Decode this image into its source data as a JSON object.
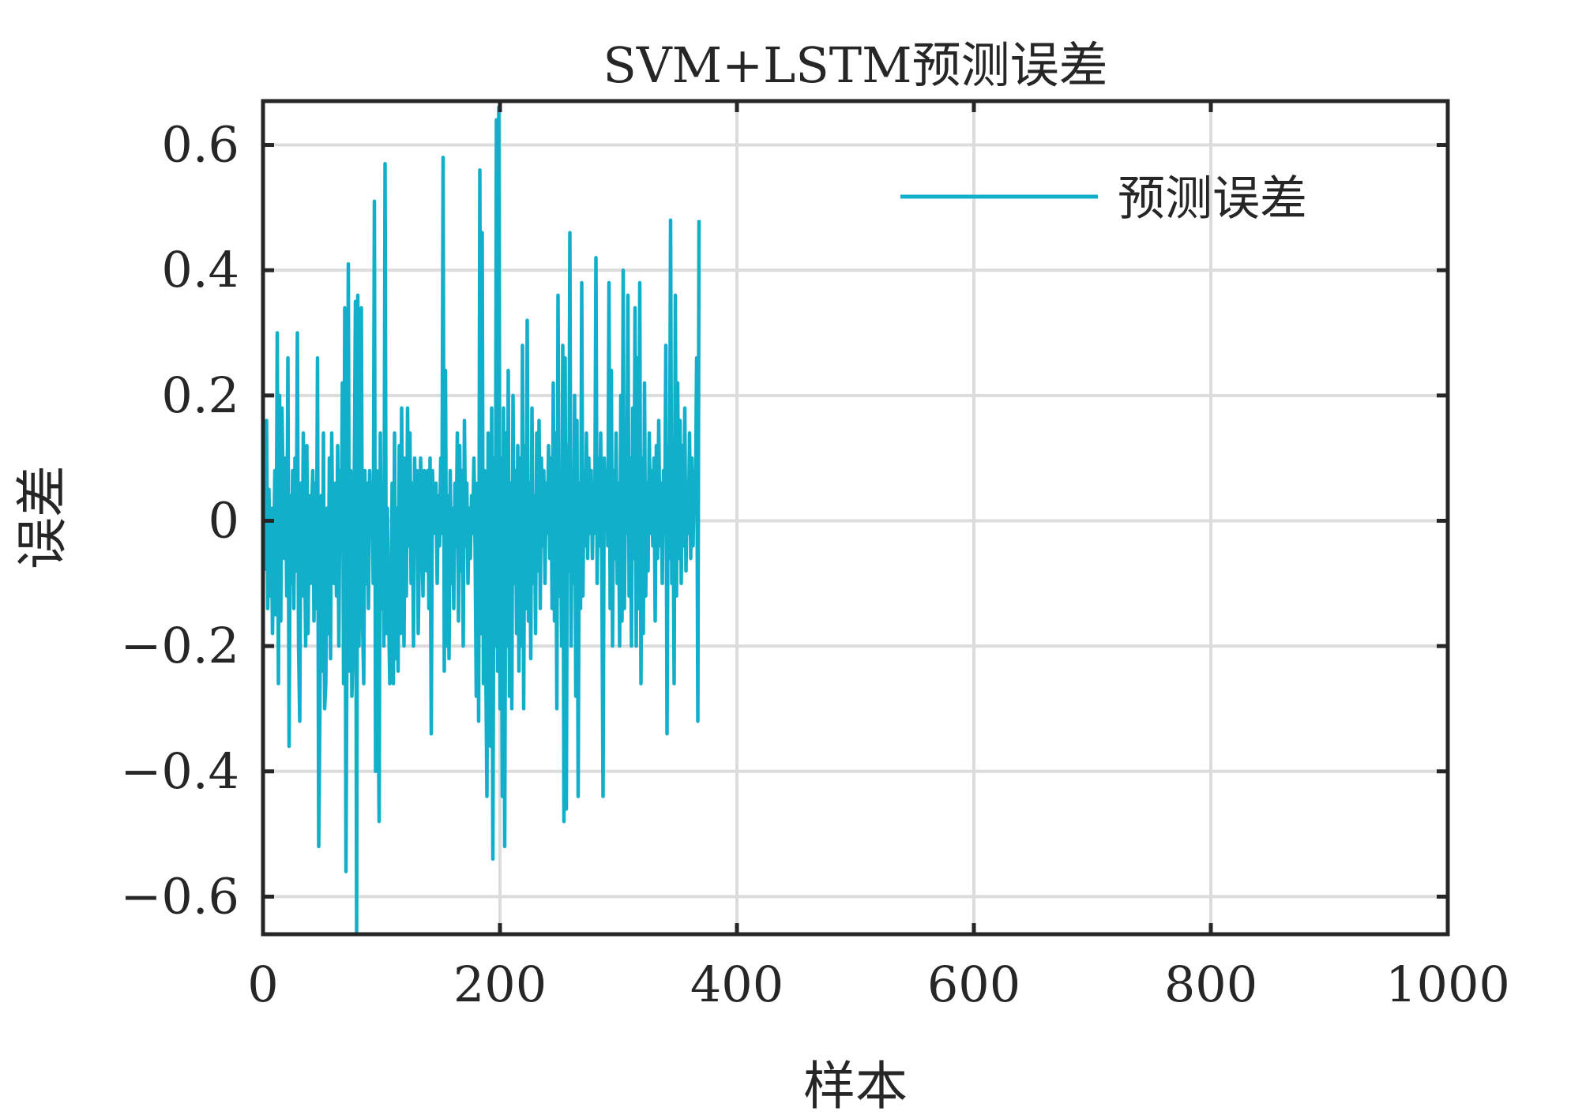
{
  "chart_data": {
    "type": "line",
    "title": "SVM+LSTM预测误差",
    "xlabel": "样本",
    "ylabel": "误差",
    "xlim": [
      0,
      1000
    ],
    "ylim": [
      -0.66,
      0.67
    ],
    "xticks": [
      0,
      200,
      400,
      600,
      800,
      1000
    ],
    "xtick_labels": [
      "0",
      "200",
      "400",
      "600",
      "800",
      "1000"
    ],
    "yticks": [
      -0.6,
      -0.4,
      -0.2,
      0,
      0.2,
      0.4,
      0.6
    ],
    "ytick_labels": [
      "−0.6",
      "−0.4",
      "−0.2",
      "0",
      "0.2",
      "0.4",
      "0.6"
    ],
    "grid": true,
    "legend_position": "top-right",
    "series": [
      {
        "name": "预测误差",
        "color": "#12AFCA",
        "x_start": 1,
        "x_step": 1,
        "values": [
          -0.08,
          -0.04,
          0.16,
          -0.14,
          0.05,
          -0.12,
          0.02,
          -0.18,
          -0.05,
          0.08,
          -0.15,
          0.3,
          -0.26,
          0.2,
          -0.16,
          0.18,
          0.05,
          -0.06,
          0.1,
          -0.12,
          0.26,
          -0.36,
          0.04,
          -0.1,
          0.08,
          -0.14,
          0.1,
          -0.08,
          0.3,
          -0.2,
          -0.32,
          0.06,
          -0.12,
          0.14,
          -0.02,
          -0.2,
          0.12,
          -0.18,
          0.04,
          -0.1,
          0.02,
          0.08,
          -0.16,
          0.06,
          -0.14,
          0.26,
          -0.52,
          -0.3,
          0.04,
          -0.24,
          0.14,
          -0.3,
          -0.26,
          0.02,
          -0.18,
          0.1,
          -0.22,
          0.14,
          -0.06,
          -0.1,
          0.06,
          -0.12,
          0.12,
          -0.2,
          0.08,
          -0.02,
          0.22,
          -0.26,
          0.34,
          -0.56,
          -0.12,
          0.41,
          -0.24,
          0.08,
          -0.28,
          -0.2,
          0.06,
          0.35,
          -0.66,
          0.36,
          -0.2,
          0.06,
          0.34,
          -0.16,
          -0.26,
          0.08,
          -0.1,
          0.06,
          -0.14,
          0.08,
          -0.02,
          0.06,
          -0.1,
          0.51,
          -0.4,
          0.08,
          -0.22,
          -0.48,
          0.14,
          -0.14,
          0.06,
          -0.2,
          0.57,
          -0.18,
          0.02,
          -0.14,
          -0.26,
          -0.18,
          0.06,
          -0.26,
          0.14,
          -0.22,
          0.02,
          -0.24,
          0.12,
          -0.18,
          0.18,
          -0.06,
          -0.2,
          0.1,
          -0.12,
          0.18,
          -0.04,
          0.14,
          -0.1,
          0.06,
          -0.2,
          0.1,
          -0.04,
          0.08,
          -0.18,
          -0.04,
          0.1,
          0.02,
          -0.12,
          0.08,
          0.04,
          -0.08,
          0.08,
          -0.14,
          0.1,
          -0.34,
          0.08,
          0.02,
          -0.02,
          0.06,
          -0.1,
          0.04,
          -0.04,
          0.1,
          -0.02,
          0.58,
          -0.24,
          0.24,
          -0.2,
          0.04,
          -0.22,
          0.08,
          -0.1,
          0.02,
          -0.14,
          0.06,
          -0.04,
          0.14,
          -0.16,
          0.12,
          -0.08,
          0.08,
          -0.2,
          0.16,
          -0.04,
          0.06,
          -0.1,
          0.02,
          -0.06,
          0.04,
          -0.02,
          0.1,
          -0.04,
          -0.28,
          0.06,
          -0.32,
          0.56,
          -0.18,
          0.46,
          -0.26,
          0.08,
          -0.22,
          -0.44,
          0.14,
          -0.12,
          -0.36,
          0.18,
          -0.54,
          0.1,
          -0.2,
          0.64,
          -0.24,
          0.66,
          -0.3,
          0.1,
          -0.44,
          0.18,
          -0.52,
          0.14,
          -0.2,
          0.24,
          -0.28,
          0.06,
          -0.3,
          0.2,
          -0.1,
          0.08,
          -0.18,
          0.12,
          -0.24,
          0.1,
          -0.2,
          0.28,
          -0.3,
          0.12,
          -0.14,
          0.32,
          -0.16,
          0.06,
          -0.22,
          0.18,
          -0.1,
          0.04,
          -0.18,
          0.14,
          -0.08,
          0.16,
          -0.14,
          0.1,
          -0.04,
          0.08,
          -0.1,
          0.06,
          -0.02,
          0.12,
          -0.06,
          0.1,
          -0.14,
          0.22,
          -0.16,
          0.14,
          -0.3,
          0.36,
          -0.12,
          0.06,
          -0.2,
          0.28,
          -0.48,
          0.26,
          -0.46,
          0.12,
          -0.08,
          0.46,
          -0.2,
          0.06,
          -0.1,
          0.2,
          -0.28,
          0.16,
          -0.44,
          0.06,
          -0.14,
          0.38,
          -0.12,
          0.08,
          -0.04,
          0.14,
          -0.06,
          0.1,
          -0.02,
          0.08,
          -0.06,
          0.06,
          -0.02,
          0.42,
          -0.1,
          0.1,
          -0.04,
          0.14,
          -0.08,
          -0.44,
          0.1,
          0.02,
          0.08,
          -0.04,
          0.38,
          -0.14,
          0.24,
          -0.2,
          0.08,
          -0.06,
          0.14,
          -0.1,
          0.06,
          -0.2,
          0.2,
          -0.16,
          0.4,
          -0.14,
          0.06,
          -0.02,
          0.36,
          -0.12,
          0.1,
          -0.2,
          0.18,
          -0.06,
          0.34,
          -0.2,
          0.26,
          -0.14,
          0.38,
          -0.26,
          0.1,
          -0.18,
          0.22,
          -0.12,
          0.06,
          -0.08,
          0.14,
          -0.02,
          0.08,
          -0.04,
          0.1,
          -0.16,
          0.12,
          -0.06,
          0.16,
          -0.04,
          0.06,
          -0.1,
          0.08,
          -0.02,
          0.28,
          -0.34,
          0.12,
          -0.06,
          0.48,
          -0.1,
          0.08,
          -0.26,
          0.36,
          -0.12,
          0.22,
          -0.06,
          0.16,
          -0.1,
          0.12,
          -0.04,
          0.18,
          -0.08,
          0.06,
          -0.02,
          0.14,
          -0.06,
          0.1,
          -0.04,
          0.08,
          0.02,
          0.26,
          -0.32,
          0.48
        ]
      }
    ]
  }
}
